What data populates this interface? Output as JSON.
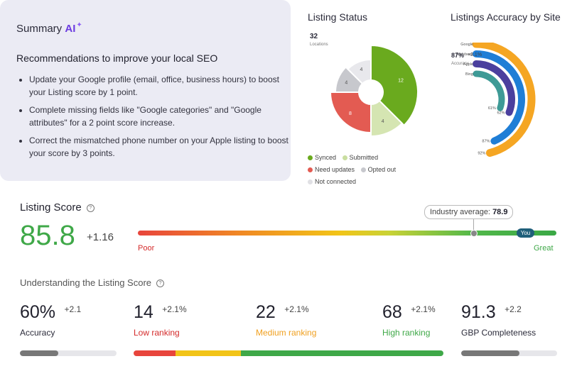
{
  "summary": {
    "title": "Summary",
    "ai": "AI",
    "spark": "✦",
    "heading": "Recommendations to improve your local SEO",
    "items": [
      "Update your Google profile (email, office, business hours) to boost your Listing score by 1 point.",
      "Complete missing fields like \"Google categories\" and \"Google attributes\" for a 2 point score increase.",
      "Correct the mismatched phone number on your Apple listing to boost your score by 3 points."
    ]
  },
  "listing_status": {
    "title": "Listing Status",
    "locations_count": "32",
    "locations_label": "Locations",
    "segments": [
      {
        "name": "Synced",
        "value": 12,
        "color": "#6aaa1e"
      },
      {
        "name": "Submitted",
        "value": 4,
        "color": "#d5e5b2"
      },
      {
        "name": "Need updates",
        "value": 8,
        "color": "#e35b52"
      },
      {
        "name": "Opted out",
        "value": 4,
        "color": "#c7c8cd"
      },
      {
        "name": "Not connected",
        "value": 4,
        "color": "#e8e8ec"
      }
    ],
    "legend": [
      "Synced",
      "Submitted",
      "Need updates",
      "Opted out",
      "Not connected"
    ]
  },
  "accuracy_by_site": {
    "title": "Listings Accuracy by Site",
    "overall": "87%",
    "delta": "+2.1%",
    "label": "Accuracy",
    "sites": [
      {
        "name": "Google",
        "pct_label": "92%",
        "value": 92,
        "color": "#f5a623"
      },
      {
        "name": "Facebook",
        "pct_label": "87%",
        "value": 87,
        "color": "#1f7ed6"
      },
      {
        "name": "Apple",
        "pct_label": "62%",
        "value": 62,
        "color": "#4b3f9e"
      },
      {
        "name": "Bing",
        "pct_label": "61%",
        "value": 61,
        "color": "#3e9a96"
      }
    ]
  },
  "listing_score": {
    "title": "Listing Score",
    "help": "?",
    "value": "85.8",
    "delta": "+1.16",
    "industry_label": "Industry average:",
    "industry_value": "78.9",
    "you_label": "You",
    "poor": "Poor",
    "great": "Great"
  },
  "understanding": {
    "title": "Understanding the Listing Score",
    "help": "?",
    "metrics": [
      {
        "value": "60%",
        "delta": "+2.1",
        "label": "Accuracy",
        "label_color": "#444444",
        "fill": 0.4
      },
      {
        "value": "14",
        "delta": "+2.1%",
        "label": "Low ranking",
        "label_color": "#d42b2b"
      },
      {
        "value": "22",
        "delta": "+2.1%",
        "label": "Medium ranking",
        "label_color": "#f0a020"
      },
      {
        "value": "68",
        "delta": "+2.1%",
        "label": "High ranking",
        "label_color": "#3fa848"
      },
      {
        "value": "91.3",
        "delta": "+2.2",
        "label": "GBP Completeness",
        "label_color": "#444444",
        "fill": 0.61
      }
    ],
    "ranking_bar": [
      {
        "name": "Low ranking",
        "value": 14,
        "color": "#e8453c"
      },
      {
        "name": "Medium ranking",
        "value": 22,
        "color": "#f2c418"
      },
      {
        "name": "High ranking",
        "value": 68,
        "color": "#3fa848"
      }
    ]
  }
}
